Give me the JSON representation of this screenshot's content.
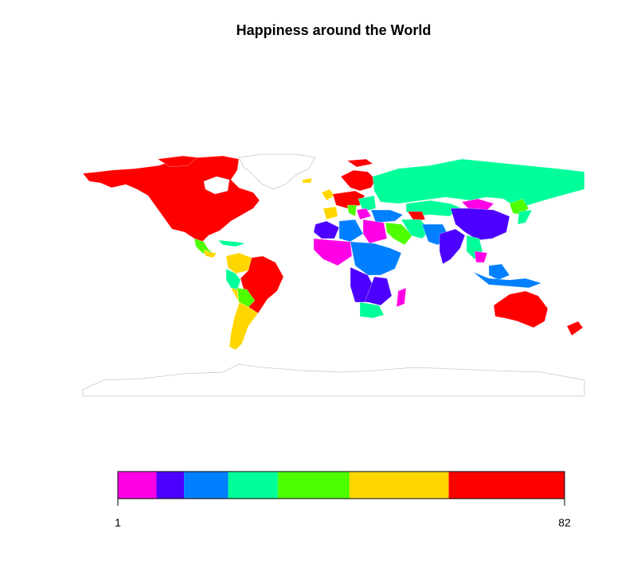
{
  "title": "Happiness around the World",
  "legend": {
    "min_label": "1",
    "max_label": "82",
    "bins": [
      {
        "from": 1,
        "to": 8,
        "color": "#FF00E6"
      },
      {
        "from": 8,
        "to": 13,
        "color": "#4C00FF"
      },
      {
        "from": 13,
        "to": 21,
        "color": "#0080FF"
      },
      {
        "from": 21,
        "to": 30,
        "color": "#00FF99"
      },
      {
        "from": 30,
        "to": 43,
        "color": "#4DFF00"
      },
      {
        "from": 43,
        "to": 61,
        "color": "#FFD700"
      },
      {
        "from": 61,
        "to": 82,
        "color": "#FF0000"
      }
    ]
  },
  "colors": {
    "no_data_fill": "#ffffff",
    "border": "#c8c8c8"
  }
}
